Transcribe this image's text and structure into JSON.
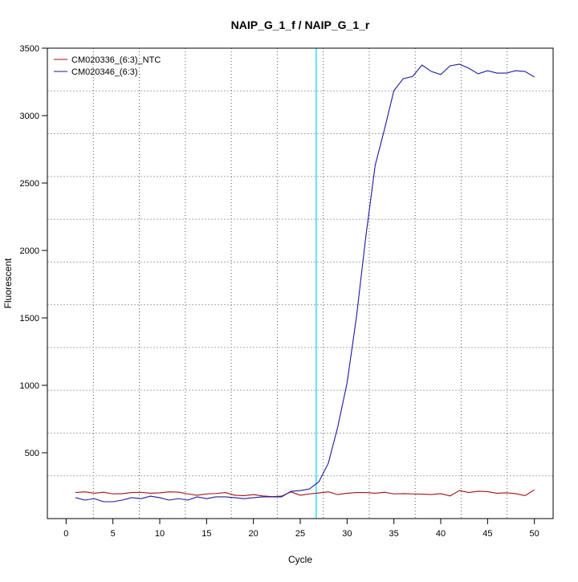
{
  "chart_data": {
    "type": "line",
    "title": "NAIP_G_1_f / NAIP_G_1_r",
    "xlabel": "Cycle",
    "ylabel": "Fluorescent",
    "xlim": [
      -2,
      52
    ],
    "ylim": [
      12,
      3500
    ],
    "xticks": [
      0,
      5,
      10,
      15,
      20,
      25,
      30,
      35,
      40,
      45,
      50
    ],
    "yticks": [
      500,
      1000,
      1500,
      2000,
      2500,
      3000,
      3500
    ],
    "grid": true,
    "legend_position": "top-left",
    "threshold_cycle": 26.7,
    "threshold_color": "#5fe6ee",
    "x": [
      1,
      2,
      3,
      4,
      5,
      6,
      7,
      8,
      9,
      10,
      11,
      12,
      13,
      14,
      15,
      16,
      17,
      18,
      19,
      20,
      21,
      22,
      23,
      24,
      25,
      26,
      27,
      28,
      29,
      30,
      31,
      32,
      33,
      34,
      35,
      36,
      37,
      38,
      39,
      40,
      41,
      42,
      43,
      44,
      45,
      46,
      47,
      48,
      49,
      50
    ],
    "series": [
      {
        "name": "CM020336_(6:3)_NTC",
        "color": "#a01010",
        "values": [
          205,
          210,
          200,
          207,
          195,
          197,
          205,
          207,
          200,
          203,
          210,
          208,
          195,
          185,
          195,
          198,
          205,
          185,
          182,
          190,
          180,
          175,
          178,
          210,
          185,
          195,
          202,
          210,
          190,
          200,
          205,
          205,
          200,
          207,
          195,
          197,
          195,
          193,
          190,
          197,
          180,
          220,
          205,
          215,
          212,
          200,
          203,
          197,
          182,
          225
        ]
      },
      {
        "name": "CM020346_(6:3)",
        "color": "#1a1aa0",
        "values": [
          167,
          149,
          160,
          137,
          137,
          149,
          167,
          160,
          178,
          167,
          149,
          160,
          149,
          173,
          160,
          173,
          173,
          167,
          160,
          167,
          173,
          173,
          173,
          214,
          220,
          232,
          286,
          423,
          690,
          1018,
          1506,
          2101,
          2631,
          2900,
          3185,
          3274,
          3290,
          3375,
          3327,
          3304,
          3369,
          3381,
          3351,
          3310,
          3333,
          3315,
          3315,
          3333,
          3327,
          3286
        ]
      }
    ]
  }
}
